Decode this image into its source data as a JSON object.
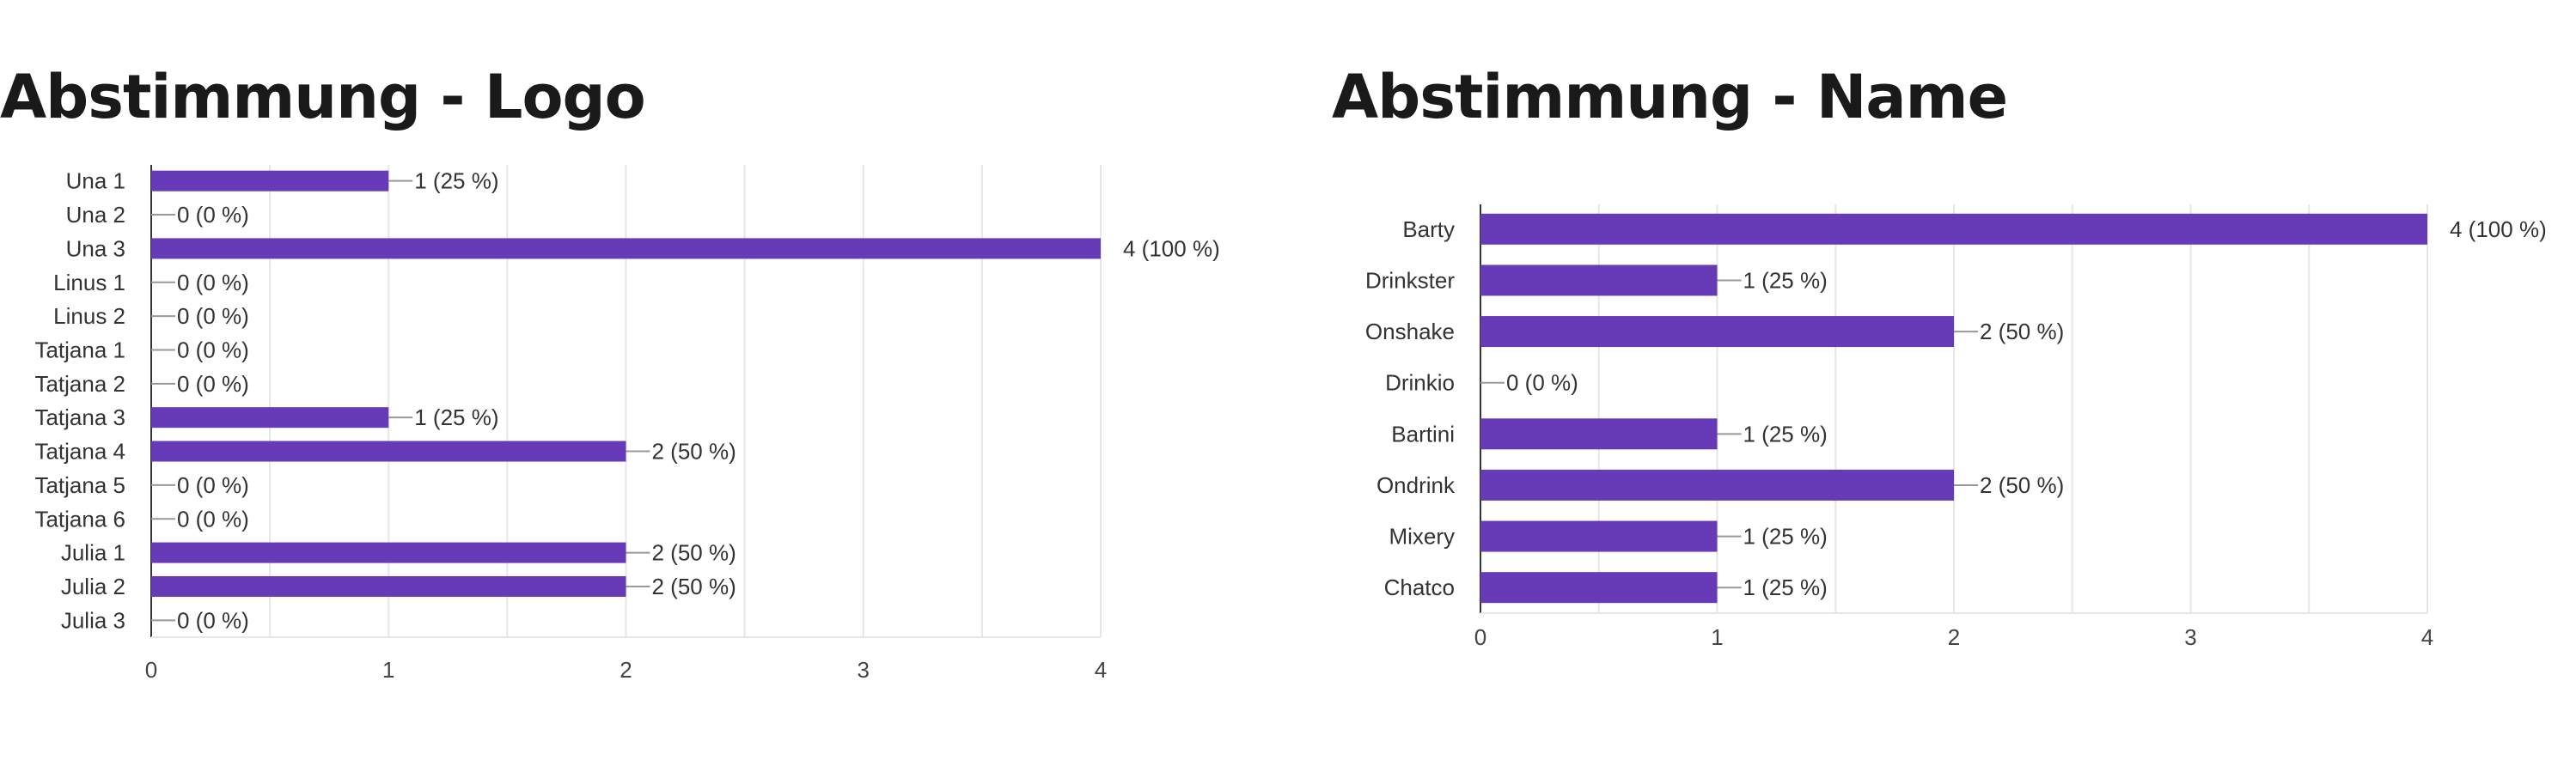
{
  "panels": [
    {
      "title": "Abstimmung - Logo",
      "chart_data": {
        "type": "bar",
        "orientation": "horizontal",
        "categories": [
          "Una 1",
          "Una 2",
          "Una 3",
          "Linus 1",
          "Linus 2",
          "Tatjana 1",
          "Tatjana 2",
          "Tatjana 3",
          "Tatjana 4",
          "Tatjana 5",
          "Tatjana 6",
          "Julia 1",
          "Julia 2",
          "Julia 3"
        ],
        "values": [
          1,
          0,
          4,
          0,
          0,
          0,
          0,
          1,
          2,
          0,
          0,
          2,
          2,
          0
        ],
        "data_labels": [
          "1 (25 %)",
          "0 (0 %)",
          "4 (100 %)",
          "0 (0 %)",
          "0 (0 %)",
          "0 (0 %)",
          "0 (0 %)",
          "1 (25 %)",
          "2 (50 %)",
          "0 (0 %)",
          "0 (0 %)",
          "2 (50 %)",
          "2 (50 %)",
          "0 (0 %)"
        ],
        "x_ticks": [
          "0",
          "1",
          "2",
          "3",
          "4"
        ],
        "xlim": [
          0,
          4
        ],
        "grid": true,
        "bar_color": "#673ab7"
      }
    },
    {
      "title": "Abstimmung - Name",
      "chart_data": {
        "type": "bar",
        "orientation": "horizontal",
        "categories": [
          "Barty",
          "Drinkster",
          "Onshake",
          "Drinkio",
          "Bartini",
          "Ondrink",
          "Mixery",
          "Chatco"
        ],
        "values": [
          4,
          1,
          2,
          0,
          1,
          2,
          1,
          1
        ],
        "data_labels": [
          "4 (100 %)",
          "1 (25 %)",
          "2 (50 %)",
          "0 (0 %)",
          "1 (25 %)",
          "2 (50 %)",
          "1 (25 %)",
          "1 (25 %)"
        ],
        "x_ticks": [
          "0",
          "1",
          "2",
          "3",
          "4"
        ],
        "xlim": [
          0,
          4
        ],
        "grid": true,
        "bar_color": "#673ab7"
      }
    }
  ]
}
